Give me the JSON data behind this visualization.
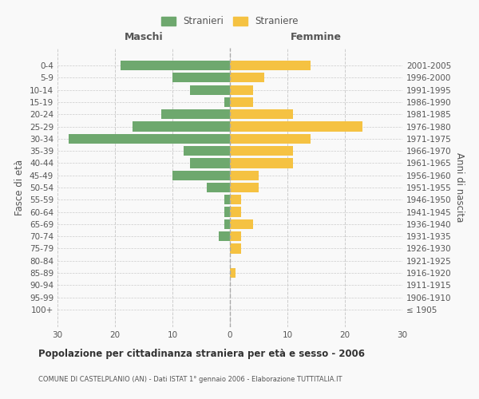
{
  "age_groups": [
    "100+",
    "95-99",
    "90-94",
    "85-89",
    "80-84",
    "75-79",
    "70-74",
    "65-69",
    "60-64",
    "55-59",
    "50-54",
    "45-49",
    "40-44",
    "35-39",
    "30-34",
    "25-29",
    "20-24",
    "15-19",
    "10-14",
    "5-9",
    "0-4"
  ],
  "birth_years": [
    "≤ 1905",
    "1906-1910",
    "1911-1915",
    "1916-1920",
    "1921-1925",
    "1926-1930",
    "1931-1935",
    "1936-1940",
    "1941-1945",
    "1946-1950",
    "1951-1955",
    "1956-1960",
    "1961-1965",
    "1966-1970",
    "1971-1975",
    "1976-1980",
    "1981-1985",
    "1986-1990",
    "1991-1995",
    "1996-2000",
    "2001-2005"
  ],
  "males": [
    0,
    0,
    0,
    0,
    0,
    0,
    2,
    1,
    1,
    1,
    4,
    10,
    7,
    8,
    28,
    17,
    12,
    1,
    7,
    10,
    19
  ],
  "females": [
    0,
    0,
    0,
    1,
    0,
    2,
    2,
    4,
    2,
    2,
    5,
    5,
    11,
    11,
    14,
    23,
    11,
    4,
    4,
    6,
    14
  ],
  "male_color": "#6ea86e",
  "female_color": "#f5c242",
  "background_color": "#f9f9f9",
  "grid_color": "#cccccc",
  "title": "Popolazione per cittadinanza straniera per età e sesso - 2006",
  "subtitle": "COMUNE DI CASTELPLANIO (AN) - Dati ISTAT 1° gennaio 2006 - Elaborazione TUTTITALIA.IT",
  "left_label": "Maschi",
  "right_label": "Femmine",
  "y_left_label": "Fasce di età",
  "y_right_label": "Anni di nascita",
  "legend_male": "Stranieri",
  "legend_female": "Straniere",
  "xlim": 30,
  "bar_height": 0.8
}
